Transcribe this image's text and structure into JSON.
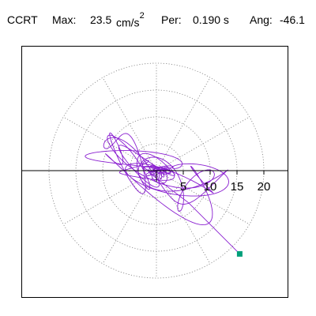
{
  "header": {
    "station": "CCRT",
    "max_label": "Max:",
    "max_value": "23.5",
    "max_units": "cm/s",
    "max_exponent": "2",
    "period_label": "Per:",
    "period_value": "0.190 s",
    "angle_label": "Ang:",
    "angle_value": "-46.1"
  },
  "chart_data": {
    "type": "polar particle-motion",
    "radial_ticks": [
      "5",
      "10",
      "15",
      "20"
    ],
    "radial_tick_values": [
      5,
      10,
      15,
      20
    ],
    "grid_circles": [
      5,
      10,
      15,
      20
    ],
    "grid_spokes_deg": [
      30,
      60,
      90,
      120,
      150,
      210,
      240,
      270,
      300,
      330
    ],
    "grid": "dotted",
    "max_amplitude": 23.5,
    "peak_angle_deg": -46.1,
    "peak_marker": {
      "x": 15.5,
      "y": -15.5
    },
    "colors": {
      "trace": "#8a1fd0",
      "marker": "#009f7a",
      "axis": "#000000",
      "grid": "#7f7f7f"
    },
    "trace_description": "horizontal particle-motion hodogram, many overlapping loops centered near origin"
  }
}
